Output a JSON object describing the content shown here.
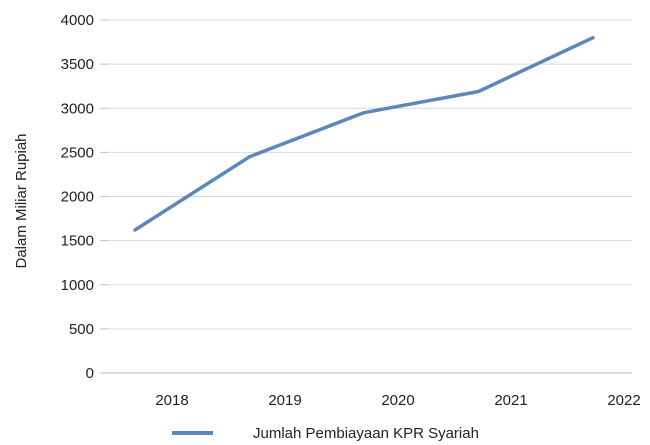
{
  "chart_data": {
    "type": "line",
    "categories": [
      "2018",
      "2019",
      "2020",
      "2021",
      "2022"
    ],
    "x": [
      0.7,
      1.7,
      2.7,
      3.7,
      4.7
    ],
    "y_ticks": [
      "0",
      "500",
      "1000",
      "1500",
      "2000",
      "2500",
      "3000",
      "3500",
      "4000"
    ],
    "ylim": [
      0,
      4000
    ],
    "ylabel": "Dalam Miliar Rupiah",
    "xlabel": "",
    "title": "",
    "grid": true,
    "legend_position": "bottom",
    "series": [
      {
        "name": "Jumlah Pembiayaan KPR Syariah",
        "color": "#5b87b9",
        "values": [
          1620,
          2450,
          2950,
          3190,
          3800
        ]
      }
    ]
  }
}
